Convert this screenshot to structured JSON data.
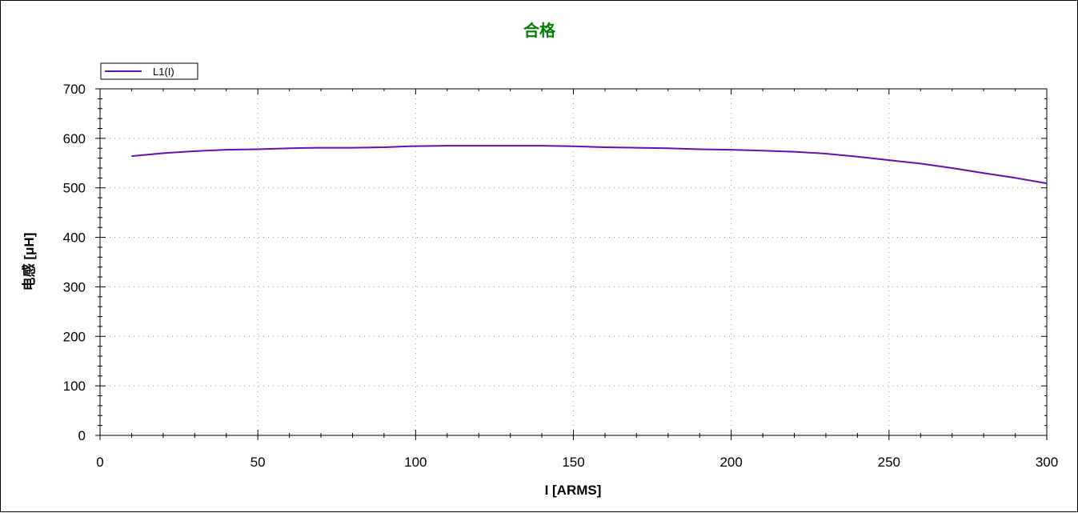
{
  "chart_data": {
    "type": "line",
    "title": "合格",
    "title_color": "#008000",
    "xlabel": "I [ARMS]",
    "ylabel": "电感 [μH]",
    "xlim": [
      0,
      300
    ],
    "ylim": [
      0,
      700
    ],
    "x_ticks": [
      "0",
      "50",
      "100",
      "150",
      "200",
      "250",
      "300"
    ],
    "y_ticks": [
      "0",
      "100",
      "200",
      "300",
      "400",
      "500",
      "600",
      "700"
    ],
    "grid": true,
    "legend_position": "top-left",
    "series": [
      {
        "name": "L1(I)",
        "color": "#6a0dad",
        "x": [
          10,
          20,
          30,
          40,
          50,
          60,
          70,
          80,
          90,
          98,
          110,
          120,
          130,
          140,
          150,
          160,
          170,
          180,
          190,
          200,
          210,
          220,
          230,
          240,
          250,
          260,
          270,
          280,
          290,
          300
        ],
        "y": [
          564,
          570,
          574,
          577,
          578,
          580,
          581,
          581,
          582,
          584,
          585,
          585,
          585,
          585,
          584,
          582,
          581,
          580,
          578,
          577,
          575,
          573,
          569,
          563,
          556,
          549,
          540,
          530,
          520,
          509
        ]
      }
    ]
  }
}
